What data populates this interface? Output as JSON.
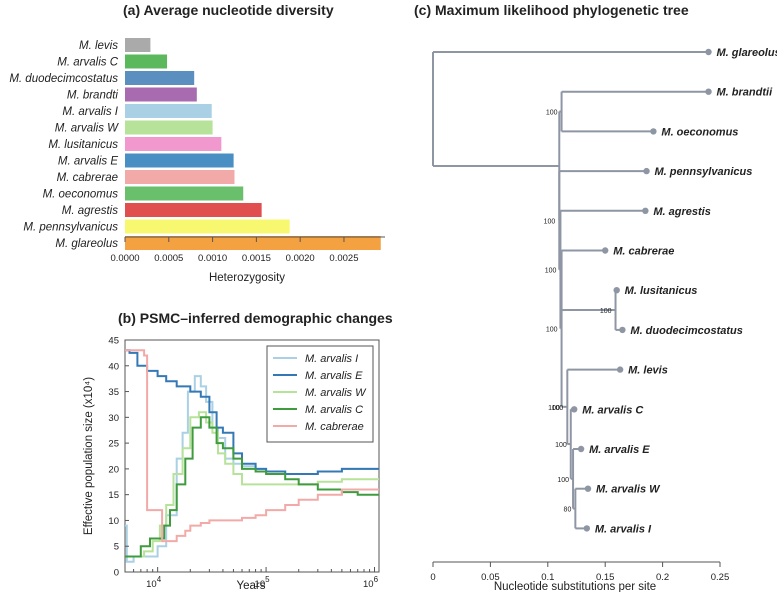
{
  "colors": {
    "background": "#ffffff",
    "text": "#222222",
    "tree": "#8e96a4",
    "axis": "#555555"
  },
  "chart_data": [
    {
      "type": "bar",
      "orientation": "horizontal",
      "panel": "(a)",
      "title": "Average nucleotide diversity",
      "xlabel": "Heterozygosity",
      "ylabel": "",
      "xlim": [
        0,
        0.0029
      ],
      "xticks": [
        "0.0000",
        "0.0005",
        "0.0010",
        "0.0015",
        "0.0020",
        "0.0025"
      ],
      "tick_values": [
        0,
        0.0005,
        0.001,
        0.0015,
        0.002,
        0.0025
      ],
      "categories": [
        "M. levis",
        "M. arvalis C",
        "M. duodecimcostatus",
        "M. brandti",
        "M. arvalis I",
        "M. arvalis W",
        "M. lusitanicus",
        "M. arvalis E",
        "M. cabrerae",
        "M. oeconomus",
        "M. agrestis",
        "M. pennsylvanicus",
        "M. glareolus"
      ],
      "values": [
        0.00029,
        0.00048,
        0.00079,
        0.00082,
        0.00099,
        0.001,
        0.0011,
        0.00124,
        0.00125,
        0.00135,
        0.00156,
        0.00188,
        0.00292
      ],
      "bar_colors": [
        "#aaaaaa",
        "#5cb85c",
        "#5a8fbf",
        "#a86bb0",
        "#a9d0e4",
        "#b7e29a",
        "#f199cf",
        "#4a8fc4",
        "#f2aaa8",
        "#6abf6c",
        "#e04e50",
        "#f8f870",
        "#f4a142"
      ]
    },
    {
      "type": "line",
      "panel": "(b)",
      "title": "PSMC–inferred demographic changes",
      "xlabel": "Years",
      "ylabel": "Effective population size (x10⁴)",
      "xscale": "log",
      "xlim": [
        5000,
        1100000
      ],
      "ylim": [
        0,
        45
      ],
      "xticks": [
        {
          "value": 10000,
          "base": "10",
          "exp": "4"
        },
        {
          "value": 100000,
          "base": "10",
          "exp": "5"
        },
        {
          "value": 1000000,
          "base": "10",
          "exp": "6"
        }
      ],
      "yticks": [
        "0",
        "5",
        "10",
        "15",
        "20",
        "25",
        "30",
        "35",
        "40",
        "45"
      ],
      "legend_position": "top-right",
      "series": [
        {
          "name": "M. arvalis I",
          "color": "#a9d0e4",
          "x": [
            5000,
            5200,
            6000,
            8000,
            10000,
            12000,
            15000,
            17000,
            19000,
            22000,
            25000,
            28000,
            32000,
            36000,
            42000,
            50000,
            60000,
            80000,
            100000,
            150000,
            200000,
            300000,
            500000,
            700000,
            1100000
          ],
          "y": [
            9,
            2,
            3,
            3,
            5,
            11,
            22,
            27,
            35,
            38,
            36,
            33,
            28,
            26,
            22,
            21,
            20.5,
            20,
            19.5,
            19,
            19,
            19.5,
            20,
            20,
            20
          ]
        },
        {
          "name": "M. arvalis E",
          "color": "#3478b5",
          "x": [
            5000,
            5500,
            6500,
            8000,
            10000,
            12000,
            15000,
            20000,
            25000,
            30000,
            35000,
            40000,
            50000,
            60000,
            80000,
            100000,
            150000,
            200000,
            300000,
            500000,
            700000,
            1100000
          ],
          "y": [
            43,
            42.5,
            40,
            39,
            38,
            37,
            36,
            35,
            34,
            31,
            28,
            27,
            23,
            21,
            20,
            19.5,
            19,
            19,
            19.5,
            20,
            20,
            20
          ]
        },
        {
          "name": "M. arvalis W",
          "color": "#b7e29a",
          "x": [
            5000,
            6000,
            7500,
            9000,
            10500,
            12000,
            14000,
            17000,
            20000,
            24000,
            28000,
            32000,
            36000,
            42000,
            50000,
            60000,
            80000,
            100000,
            150000,
            200000,
            300000,
            500000,
            700000,
            1100000
          ],
          "y": [
            3,
            3,
            4,
            6,
            9,
            13,
            19,
            24,
            30,
            31,
            29,
            27,
            23,
            21,
            19,
            17,
            17,
            17,
            17,
            17,
            17.5,
            18,
            18,
            18
          ]
        },
        {
          "name": "M. arvalis C",
          "color": "#3e9b3e",
          "x": [
            5000,
            6000,
            7000,
            8500,
            10000,
            11500,
            13000,
            15000,
            18000,
            21000,
            25000,
            30000,
            35000,
            40000,
            50000,
            60000,
            80000,
            100000,
            150000,
            200000,
            300000,
            500000,
            700000,
            1100000
          ],
          "y": [
            3,
            3,
            5,
            6.5,
            6.5,
            9,
            12,
            17,
            22,
            28,
            30,
            28,
            25,
            24,
            22,
            20,
            19.5,
            19,
            18,
            17,
            16,
            15.5,
            15,
            15
          ]
        },
        {
          "name": "M. cabrerae",
          "color": "#f2aaa8",
          "x": [
            5000,
            7500,
            8000,
            10000,
            11000,
            13000,
            15000,
            18000,
            20000,
            25000,
            30000,
            40000,
            50000,
            60000,
            80000,
            100000,
            150000,
            200000,
            300000,
            500000,
            700000,
            1100000
          ],
          "y": [
            43,
            42,
            12,
            12,
            6,
            6,
            7,
            8,
            9,
            9.5,
            10,
            10,
            10,
            10.5,
            11,
            12,
            13,
            14,
            15,
            16,
            16,
            16
          ]
        }
      ]
    },
    {
      "type": "tree",
      "panel": "(c)",
      "title": "Maximum likelihood phylogenetic tree",
      "xlabel": "Nucleotide substitutions per site",
      "xlim": [
        0,
        0.25
      ],
      "xticks": [
        "0",
        "0.05",
        "0.1",
        "0.15",
        "0.2",
        "0.25"
      ],
      "tick_values": [
        0,
        0.05,
        0.1,
        0.15,
        0.2,
        0.25
      ],
      "nodes": [
        {
          "id": "root",
          "x": 0
        },
        {
          "id": "n1",
          "x": 0.11,
          "parent": "root"
        },
        {
          "id": "n2",
          "x": 0.112,
          "parent": "n1",
          "bootstrap": "100"
        },
        {
          "id": "n3",
          "x": 0.11,
          "parent": "n1",
          "bootstrap": "100"
        },
        {
          "id": "n4",
          "x": 0.111,
          "parent": "n3",
          "bootstrap": "100"
        },
        {
          "id": "n5",
          "x": 0.112,
          "parent": "n4",
          "bootstrap": "100"
        },
        {
          "id": "n6",
          "x": 0.114,
          "parent": "n5",
          "bootstrap": "100"
        },
        {
          "id": "n7",
          "x": 0.115,
          "parent": "n5"
        },
        {
          "id": "n8",
          "x": 0.159,
          "parent": "n7",
          "bootstrap": "100"
        },
        {
          "id": "n9",
          "x": 0.117,
          "parent": "n6",
          "bootstrap": "100"
        },
        {
          "id": "n10",
          "x": 0.12,
          "parent": "n9",
          "bootstrap": "100"
        },
        {
          "id": "n11",
          "x": 0.122,
          "parent": "n10",
          "bootstrap": "100"
        },
        {
          "id": "n12",
          "x": 0.124,
          "parent": "n11",
          "bootstrap": "80"
        }
      ],
      "leaves": [
        {
          "name": "M. glareolus",
          "x": 0.24,
          "parent": "root"
        },
        {
          "name": "M. brandtii",
          "x": 0.24,
          "parent": "n2"
        },
        {
          "name": "M. oeconomus",
          "x": 0.192,
          "parent": "n2"
        },
        {
          "name": "M. pennsylvanicus",
          "x": 0.186,
          "parent": "n3"
        },
        {
          "name": "M. agrestis",
          "x": 0.185,
          "parent": "n4"
        },
        {
          "name": "M. cabrerae",
          "x": 0.15,
          "parent": "n5"
        },
        {
          "name": "M. lusitanicus",
          "x": 0.16,
          "parent": "n8"
        },
        {
          "name": "M. duodecimcostatus",
          "x": 0.165,
          "parent": "n8"
        },
        {
          "name": "M. levis",
          "x": 0.163,
          "parent": "n9"
        },
        {
          "name": "M. arvalis C",
          "x": 0.123,
          "parent": "n10"
        },
        {
          "name": "M. arvalis E",
          "x": 0.129,
          "parent": "n11"
        },
        {
          "name": "M. arvalis W",
          "x": 0.135,
          "parent": "n12"
        },
        {
          "name": "M. arvalis I",
          "x": 0.134,
          "parent": "n12"
        }
      ]
    }
  ]
}
